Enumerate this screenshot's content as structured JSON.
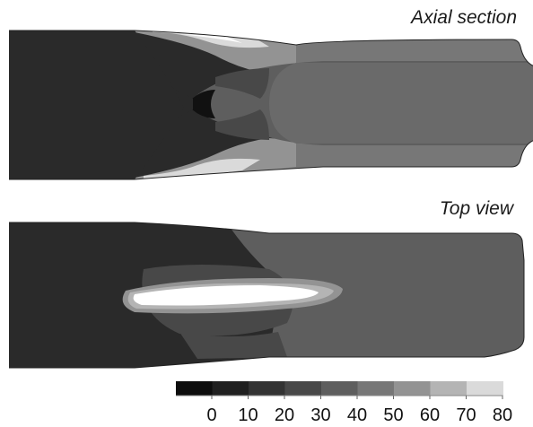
{
  "panels": {
    "axial_section_title": "Axial section",
    "top_view_title": "Top view"
  },
  "colorbar": {
    "ticks": [
      "0",
      "10",
      "20",
      "30",
      "40",
      "50",
      "60",
      "70",
      "80"
    ],
    "levels": [
      {
        "color": "#0d0d0d"
      },
      {
        "color": "#202020"
      },
      {
        "color": "#333333"
      },
      {
        "color": "#484848"
      },
      {
        "color": "#5e5e5e"
      },
      {
        "color": "#777777"
      },
      {
        "color": "#939393"
      },
      {
        "color": "#b4b4b4"
      },
      {
        "color": "#dadada"
      }
    ]
  }
}
